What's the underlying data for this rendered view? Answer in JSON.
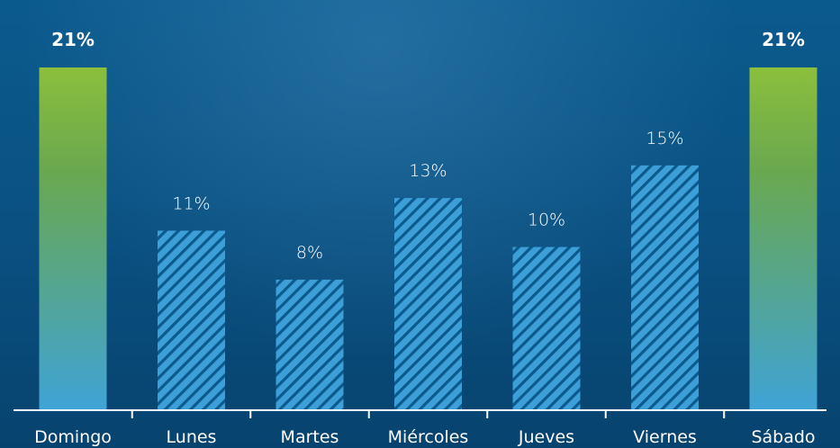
{
  "chart_data": {
    "type": "bar",
    "categories": [
      "Domingo",
      "Lunes",
      "Martes",
      "Miércoles",
      "Jueves",
      "Viernes",
      "Sábado"
    ],
    "values": [
      21,
      11,
      8,
      13,
      10,
      15,
      21
    ],
    "value_labels": [
      "21%",
      "11%",
      "8%",
      "13%",
      "10%",
      "15%",
      "21%"
    ],
    "highlighted": [
      true,
      false,
      false,
      false,
      false,
      false,
      true
    ],
    "title": "",
    "xlabel": "",
    "ylabel": "",
    "ylim": [
      0,
      21
    ],
    "grid": false,
    "colors": {
      "highlight_top": "#8bbf3c",
      "highlight_bottom": "#3fa3d6",
      "hatch_bar": "#3d9fd8",
      "hatch_stripe": "#0b5a8e",
      "axis": "#ffffff",
      "text": "#ffffff"
    }
  }
}
